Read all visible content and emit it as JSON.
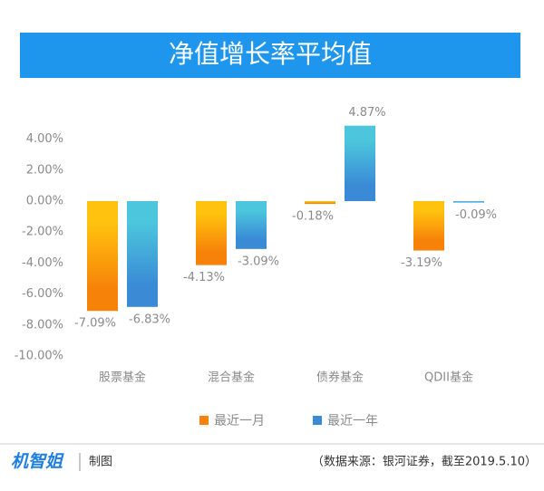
{
  "chart_data": {
    "type": "bar",
    "title": "净值增长率平均值",
    "categories": [
      "股票基金",
      "混合基金",
      "债券基金",
      "QDII基金"
    ],
    "series": [
      {
        "name": "最近一月",
        "color": "#f7820a",
        "values": [
          -7.09,
          -4.13,
          -0.18,
          -3.19
        ],
        "value_labels": [
          "-7.09%",
          "-4.13%",
          "-0.18%",
          "-3.19%"
        ]
      },
      {
        "name": "最近一年",
        "color": "#3a8ad6",
        "values": [
          -6.83,
          -3.09,
          4.87,
          -0.09
        ],
        "value_labels": [
          "-6.83%",
          "-3.09%",
          "4.87%",
          "-0.09%"
        ]
      }
    ],
    "ylim": [
      -10,
      5
    ],
    "yticks": [
      {
        "value": 4,
        "label": "4.00%"
      },
      {
        "value": 2,
        "label": "2.00%"
      },
      {
        "value": 0,
        "label": "0.00%"
      },
      {
        "value": -2,
        "label": "-2.00%"
      },
      {
        "value": -4,
        "label": "-4.00%"
      },
      {
        "value": -6,
        "label": "-6.00%"
      },
      {
        "value": -8,
        "label": "-8.00%"
      },
      {
        "value": -10,
        "label": "-10.00%"
      }
    ],
    "legend": "bottom"
  },
  "footer": {
    "logo": "机智姐",
    "credit": "制图",
    "source": "（数据来源：银河证券，截至2019.5.10）"
  }
}
